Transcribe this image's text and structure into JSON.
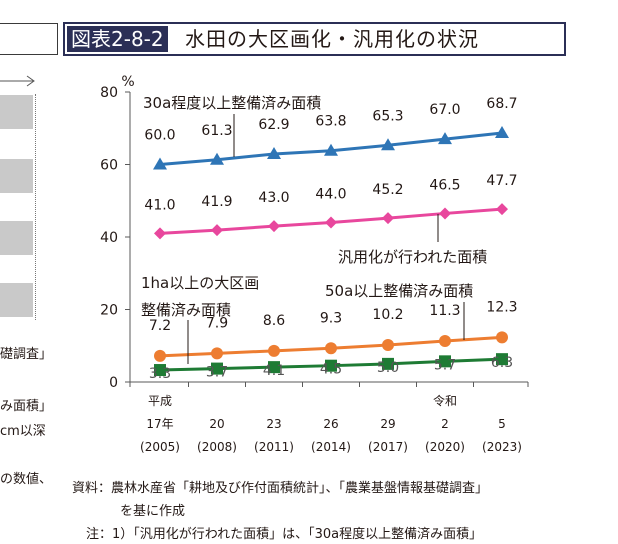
{
  "left_panel": {
    "fragments": [
      "礎調査」",
      "み面積」",
      "cm以深",
      "の数値、"
    ]
  },
  "title": {
    "label": "図表2-8-2",
    "text": "水田の大区画化・汎用化の状況"
  },
  "chart_data": {
    "type": "line",
    "unit": "%",
    "ylim": [
      0,
      80
    ],
    "yticks": [
      0,
      20,
      40,
      60,
      80
    ],
    "grid": false,
    "categories": [
      "平成17年(2005)",
      "20(2008)",
      "23(2011)",
      "26(2014)",
      "29(2017)",
      "令和2(2020)",
      "5(2023)"
    ],
    "x_era_row": [
      "平成",
      "",
      "",
      "",
      "",
      "令和",
      ""
    ],
    "x_year_row": [
      "17年",
      "20",
      "23",
      "26",
      "29",
      "2",
      "5"
    ],
    "x_ad_row": [
      "(2005)",
      "(2008)",
      "(2011)",
      "(2014)",
      "(2017)",
      "(2020)",
      "(2023)"
    ],
    "series": [
      {
        "name": "30a程度以上整備済み面積",
        "color": "#2e75b6",
        "marker": "triangle",
        "values": [
          60.0,
          61.3,
          62.9,
          63.8,
          65.3,
          67.0,
          68.7
        ],
        "value_labels": [
          "60.0",
          "61.3",
          "62.9",
          "63.8",
          "65.3",
          "67.0",
          "68.7"
        ]
      },
      {
        "name": "汎用化が行われた面積",
        "color": "#e8479d",
        "marker": "diamond",
        "values": [
          41.0,
          41.9,
          43.0,
          44.0,
          45.2,
          46.5,
          47.7
        ],
        "value_labels": [
          "41.0",
          "41.9",
          "43.0",
          "44.0",
          "45.2",
          "46.5",
          "47.7"
        ]
      },
      {
        "name": "50a以上整備済み面積",
        "color": "#ed7d31",
        "marker": "circle",
        "values": [
          7.2,
          7.9,
          8.6,
          9.3,
          10.2,
          11.3,
          12.3
        ],
        "value_labels": [
          "7.2",
          "7.9",
          "8.6",
          "9.3",
          "10.2",
          "11.3",
          "12.3"
        ]
      },
      {
        "name": "1ha以上の大区画整備済み面積",
        "name_lines": [
          "1ha以上の大区画",
          "整備済み面積"
        ],
        "color": "#1e7b34",
        "marker": "square",
        "values": [
          3.3,
          3.7,
          4.1,
          4.5,
          5.0,
          5.7,
          6.3
        ],
        "value_labels": [
          "3.3",
          "3.7",
          "4.1",
          "4.5",
          "5.0",
          "5.7",
          "6.3"
        ]
      }
    ]
  },
  "source": {
    "lines": [
      "資料：農林水産省「耕地及び作付面積統計」、「農業基盤情報基礎調査」",
      "を基に作成",
      "注：1）「汎用化が行われた面積」は、「30a程度以上整備済み面積」"
    ]
  }
}
